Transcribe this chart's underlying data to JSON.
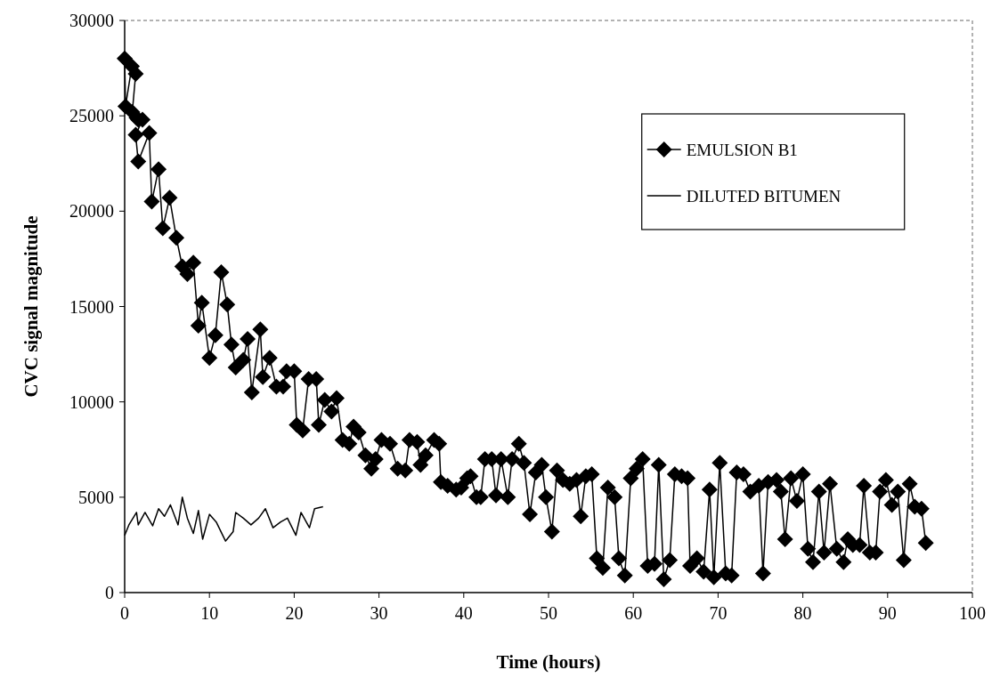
{
  "chart_data": {
    "type": "line",
    "xlabel": "Time (hours)",
    "ylabel": "CVC signal magnitude",
    "xlim": [
      0,
      100
    ],
    "xticks": [
      0,
      10,
      20,
      30,
      40,
      50,
      60,
      70,
      80,
      90,
      100
    ],
    "ylim": [
      0,
      30000
    ],
    "yticks": [
      0,
      5000,
      10000,
      15000,
      20000,
      25000,
      30000
    ],
    "grid": false,
    "legend": "top right",
    "series": [
      {
        "name": "EMULSION B1",
        "color": "#000000",
        "marker": "diamond",
        "x": [
          0,
          0.1,
          0.85,
          1.3,
          0.9,
          1.4,
          1.6,
          2.1,
          1.3,
          1.6,
          2.9,
          3.2,
          4.0,
          4.5,
          5.3,
          6.1,
          6.8,
          7.4,
          8.1,
          8.7,
          9.1,
          10.0,
          10.7,
          11.4,
          12.1,
          12.6,
          13.1,
          14.0,
          14.5,
          15.0,
          16.0,
          16.3,
          17.1,
          17.9,
          18.7,
          19.1,
          20.0,
          20.3,
          21.0,
          21.7,
          22.6,
          22.9,
          23.6,
          24.4,
          25.0,
          25.7,
          26.5,
          27.0,
          27.6,
          28.4,
          29.1,
          29.6,
          30.3,
          31.3,
          32.2,
          33.1,
          33.6,
          34.5,
          34.9,
          35.5,
          36.5,
          37.1,
          37.3,
          38.1,
          39.1,
          39.7,
          40.4,
          40.8,
          41.5,
          42.0,
          42.5,
          43.3,
          43.8,
          44.4,
          45.2,
          45.7,
          46.5,
          47.1,
          47.8,
          48.5,
          49.2,
          49.7,
          50.4,
          51.0,
          51.7,
          52.5,
          53.3,
          53.8,
          54.4,
          55.1,
          55.7,
          56.4,
          57.0,
          57.8,
          58.3,
          59.0,
          59.7,
          60.4,
          61.1,
          61.7,
          62.5,
          63.0,
          63.6,
          64.3,
          64.9,
          65.7,
          66.4,
          66.7,
          67.5,
          68.3,
          69.0,
          69.5,
          70.2,
          70.9,
          71.6,
          72.2,
          73.0,
          73.8,
          74.8,
          75.3,
          75.9,
          76.9,
          77.4,
          77.9,
          78.6,
          79.3,
          80.0,
          80.6,
          81.2,
          81.9,
          82.5,
          83.2,
          84.0,
          84.8,
          85.3,
          85.9,
          86.7,
          87.2,
          87.9,
          88.6,
          89.1,
          89.8,
          90.5,
          91.2,
          91.9,
          92.6,
          93.2,
          94.0,
          94.5
        ],
        "values": [
          28000,
          25500,
          27600,
          27200,
          25200,
          24900,
          24800,
          24800,
          24000,
          22600,
          24100,
          20500,
          22200,
          19100,
          20700,
          18600,
          17100,
          16700,
          17300,
          14000,
          15200,
          12300,
          13500,
          16800,
          15100,
          13000,
          11800,
          12200,
          13300,
          10500,
          13800,
          11300,
          12300,
          10800,
          10800,
          11600,
          11600,
          8800,
          8500,
          11200,
          11200,
          8800,
          10100,
          9500,
          10200,
          8000,
          7800,
          8700,
          8400,
          7200,
          6500,
          7000,
          8000,
          7800,
          6500,
          6400,
          8000,
          7900,
          6700,
          7200,
          8000,
          7800,
          5800,
          5600,
          5400,
          5500,
          6000,
          6100,
          5000,
          5000,
          7000,
          7000,
          5100,
          7000,
          5000,
          7000,
          7800,
          6800,
          4100,
          6300,
          6700,
          5000,
          3200,
          6400,
          5900,
          5700,
          5900,
          4000,
          6100,
          6200,
          1800,
          1300,
          5500,
          5000,
          1800,
          900,
          6000,
          6500,
          7000,
          1400,
          1500,
          6700,
          700,
          1700,
          6200,
          6100,
          6000,
          1400,
          1800,
          1100,
          5400,
          800,
          6800,
          1000,
          900,
          6300,
          6200,
          5300,
          5600,
          1000,
          5800,
          5900,
          5300,
          2800,
          6000,
          4800,
          6200,
          2300,
          1600,
          5300,
          2100,
          5700,
          2300,
          1600,
          2800,
          2500,
          2500,
          5600,
          2100,
          2100,
          5300,
          5900,
          4600,
          5300,
          1700,
          5700,
          4500,
          4400,
          2600
        ]
      },
      {
        "name": "DILUTED BITUMEN",
        "color": "#000000",
        "marker": "none",
        "x": [
          0,
          0.5,
          1.4,
          1.6,
          2.4,
          3.3,
          4.0,
          4.7,
          5.4,
          6.3,
          6.8,
          7.4,
          8.1,
          8.7,
          9.2,
          10.0,
          10.8,
          11.9,
          12.8,
          13.1,
          14.0,
          14.9,
          15.8,
          16.6,
          17.5,
          18.4,
          19.2,
          20.2,
          20.8,
          21.8,
          22.4,
          23.4
        ],
        "values": [
          3000,
          3550,
          4200,
          3550,
          4200,
          3500,
          4400,
          4000,
          4600,
          3550,
          5000,
          3900,
          3100,
          4300,
          2800,
          4100,
          3700,
          2700,
          3200,
          4200,
          3900,
          3550,
          3900,
          4400,
          3400,
          3700,
          3900,
          3000,
          4200,
          3400,
          4400,
          4500
        ]
      }
    ]
  }
}
